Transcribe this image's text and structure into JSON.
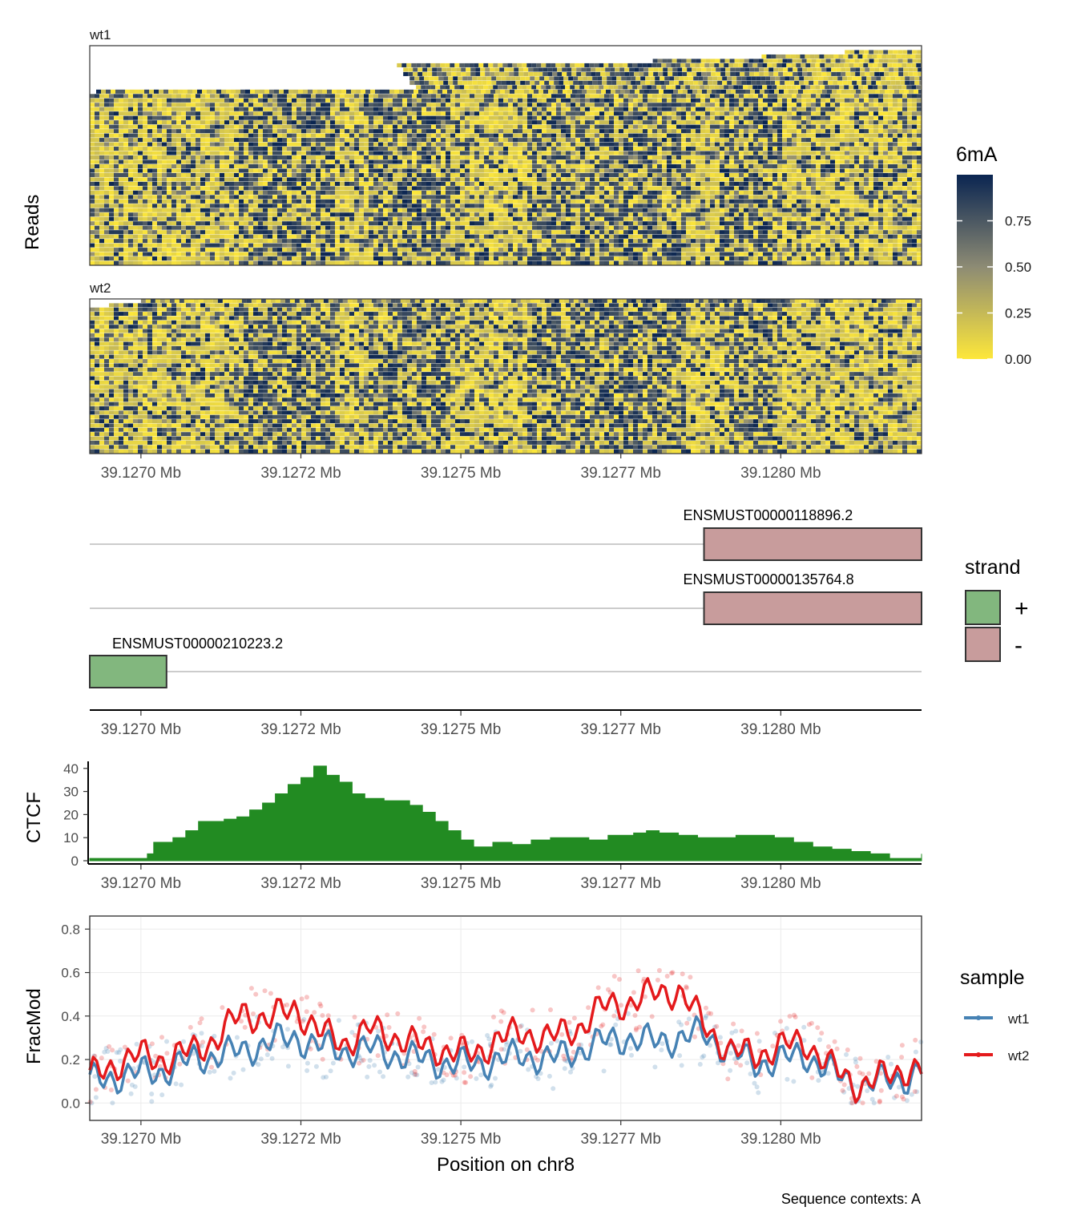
{
  "chart_data": [
    {
      "type": "heatmap",
      "panels": [
        "wt1",
        "wt2"
      ],
      "ylabel": "Reads",
      "x_ticks": [
        "39.1270 Mb",
        "39.1272 Mb",
        "39.1275 Mb",
        "39.1277 Mb",
        "39.1280 Mb"
      ],
      "x_tick_values": [
        39.127,
        39.12725,
        39.1275,
        39.12775,
        39.128
      ],
      "xlim": [
        39.12692,
        39.12822
      ],
      "legend": {
        "title": "6mA",
        "ticks": [
          "0.00",
          "0.25",
          "0.50",
          "0.75"
        ],
        "tick_values": [
          0,
          0.25,
          0.5,
          0.75
        ],
        "range": [
          0,
          1
        ],
        "colors": [
          "#FDE73A",
          "#8D8B74",
          "#0A2551"
        ],
        "position": "right"
      },
      "reads": {
        "wt1": {
          "count": 50,
          "approx_read_starts": [
            39.12822,
            39.1281,
            39.12797,
            39.1278,
            39.1274,
            39.12741,
            39.12741,
            39.12742,
            39.12742,
            39.12743,
            39.12693,
            39.12692,
            39.12692,
            39.12692,
            39.12692,
            39.12692,
            39.12692,
            39.12692,
            39.12692,
            39.12692,
            39.12692,
            39.12692,
            39.12692,
            39.12692,
            39.12692,
            39.12692,
            39.12692,
            39.12692,
            39.12692,
            39.12692,
            39.12692,
            39.12692,
            39.12692,
            39.12692,
            39.12692,
            39.12692,
            39.12692,
            39.12692,
            39.12692,
            39.12692,
            39.12692,
            39.12692,
            39.12692,
            39.12692,
            39.12692,
            39.12692,
            39.12692,
            39.12692,
            39.12692,
            39.12692
          ]
        },
        "wt2": {
          "count": 36,
          "approx_read_starts": [
            39.127,
            39.12695,
            39.12692,
            39.12692,
            39.12692,
            39.12692,
            39.12692,
            39.12692,
            39.12692,
            39.12692,
            39.12692,
            39.12692,
            39.12692,
            39.12692,
            39.12692,
            39.12692,
            39.12692,
            39.12692,
            39.12692,
            39.12692,
            39.12692,
            39.12692,
            39.12692,
            39.12692,
            39.12692,
            39.12692,
            39.12692,
            39.12692,
            39.12692,
            39.12692,
            39.12692,
            39.12692,
            39.12692,
            39.12692,
            39.12692,
            39.12692
          ]
        }
      },
      "methylated_regions": [
        [
          39.12715,
          39.1273
        ],
        [
          39.12735,
          39.12748
        ],
        [
          39.1276,
          39.12785
        ],
        [
          39.1279,
          39.128
        ]
      ]
    },
    {
      "type": "gene_track",
      "x_ticks": [
        "39.1270 Mb",
        "39.1272 Mb",
        "39.1275 Mb",
        "39.1277 Mb",
        "39.1280 Mb"
      ],
      "transcripts": [
        {
          "name": "ENSMUST00000118896.2",
          "strand": "-",
          "exon": [
            39.12788,
            39.12822
          ],
          "line": [
            39.12692,
            39.12822
          ]
        },
        {
          "name": "ENSMUST00000135764.8",
          "strand": "-",
          "exon": [
            39.12788,
            39.12822
          ],
          "line": [
            39.12692,
            39.12822
          ]
        },
        {
          "name": "ENSMUST00000210223.2",
          "strand": "+",
          "exon": [
            39.12692,
            39.12704
          ],
          "line": [
            39.12692,
            39.12822
          ]
        }
      ],
      "legend": {
        "title": "strand",
        "entries": [
          {
            "label": "+",
            "color": "#82B77E"
          },
          {
            "label": "-",
            "color": "#C89C9C"
          }
        ],
        "position": "right"
      }
    },
    {
      "type": "area",
      "ylabel": "CTCF",
      "ylim": [
        0,
        42
      ],
      "y_ticks": [
        0,
        10,
        20,
        30,
        40
      ],
      "color": "#228B22",
      "x_ticks": [
        "39.1270 Mb",
        "39.1272 Mb",
        "39.1275 Mb",
        "39.1277 Mb",
        "39.1280 Mb"
      ],
      "x": [
        39.12692,
        39.127,
        39.12701,
        39.12702,
        39.12705,
        39.12707,
        39.12709,
        39.12711,
        39.12713,
        39.12715,
        39.12717,
        39.12719,
        39.12721,
        39.12723,
        39.12725,
        39.12727,
        39.12729,
        39.12731,
        39.12733,
        39.12735,
        39.12738,
        39.1274,
        39.12742,
        39.12744,
        39.12746,
        39.12748,
        39.1275,
        39.12752,
        39.12755,
        39.12758,
        39.12761,
        39.12764,
        39.12767,
        39.1277,
        39.12773,
        39.12775,
        39.12777,
        39.12779,
        39.12781,
        39.12784,
        39.12787,
        39.1279,
        39.12793,
        39.12796,
        39.12799,
        39.12802,
        39.12805,
        39.12808,
        39.12811,
        39.12814,
        39.12817,
        39.1282,
        39.12822
      ],
      "values": [
        1,
        1,
        3,
        8,
        10,
        13,
        17,
        17,
        18,
        19,
        22,
        25,
        29,
        33,
        36,
        41,
        37,
        34,
        29,
        27,
        26,
        26,
        24,
        21,
        17,
        13,
        9,
        6,
        8,
        7,
        9,
        10,
        10,
        9,
        11,
        11,
        12,
        13,
        12,
        11,
        10,
        10,
        11,
        11,
        10,
        8,
        6,
        5,
        4,
        3,
        1,
        1,
        3
      ]
    },
    {
      "type": "line",
      "ylabel": "FracMod",
      "xlabel": "Position on chr8",
      "ylim": [
        -0.08,
        0.86
      ],
      "y_ticks": [
        "0.0",
        "0.2",
        "0.4",
        "0.6",
        "0.8"
      ],
      "y_tick_values": [
        0,
        0.2,
        0.4,
        0.6,
        0.8
      ],
      "x_ticks": [
        "39.1270 Mb",
        "39.1272 Mb",
        "39.1275 Mb",
        "39.1277 Mb",
        "39.1280 Mb"
      ],
      "legend": {
        "title": "sample",
        "position": "right"
      },
      "series": [
        {
          "name": "wt1",
          "color": "#4682B4",
          "x": [
            39.12692,
            39.12696,
            39.127,
            39.12704,
            39.12708,
            39.12712,
            39.12716,
            39.1272,
            39.12724,
            39.12728,
            39.12732,
            39.12736,
            39.1274,
            39.12744,
            39.12748,
            39.12752,
            39.12756,
            39.1276,
            39.12764,
            39.12768,
            39.12772,
            39.12776,
            39.1278,
            39.12784,
            39.12788,
            39.12792,
            39.12796,
            39.128,
            39.12804,
            39.12808,
            39.12812,
            39.12816,
            39.1282,
            39.12822
          ],
          "values": [
            0.1,
            0.12,
            0.14,
            0.15,
            0.2,
            0.22,
            0.24,
            0.28,
            0.3,
            0.26,
            0.24,
            0.25,
            0.22,
            0.2,
            0.18,
            0.18,
            0.2,
            0.22,
            0.2,
            0.24,
            0.28,
            0.3,
            0.28,
            0.3,
            0.32,
            0.24,
            0.18,
            0.2,
            0.22,
            0.14,
            0.08,
            0.1,
            0.12,
            0.15
          ]
        },
        {
          "name": "wt2",
          "color": "#E41A1C",
          "x": [
            39.12692,
            39.12696,
            39.127,
            39.12704,
            39.12708,
            39.12712,
            39.12716,
            39.1272,
            39.12724,
            39.12728,
            39.12732,
            39.12736,
            39.1274,
            39.12744,
            39.12748,
            39.12752,
            39.12756,
            39.1276,
            39.12764,
            39.12768,
            39.12772,
            39.12776,
            39.1278,
            39.12784,
            39.12788,
            39.12792,
            39.12796,
            39.128,
            39.12804,
            39.12808,
            39.12812,
            39.12816,
            39.1282,
            39.12822
          ],
          "values": [
            0.12,
            0.18,
            0.22,
            0.2,
            0.24,
            0.3,
            0.42,
            0.38,
            0.44,
            0.32,
            0.28,
            0.34,
            0.3,
            0.26,
            0.24,
            0.22,
            0.3,
            0.32,
            0.3,
            0.34,
            0.44,
            0.46,
            0.5,
            0.52,
            0.36,
            0.24,
            0.22,
            0.26,
            0.28,
            0.16,
            0.08,
            0.12,
            0.16,
            0.15
          ]
        }
      ]
    }
  ],
  "caption": "Sequence contexts: A"
}
